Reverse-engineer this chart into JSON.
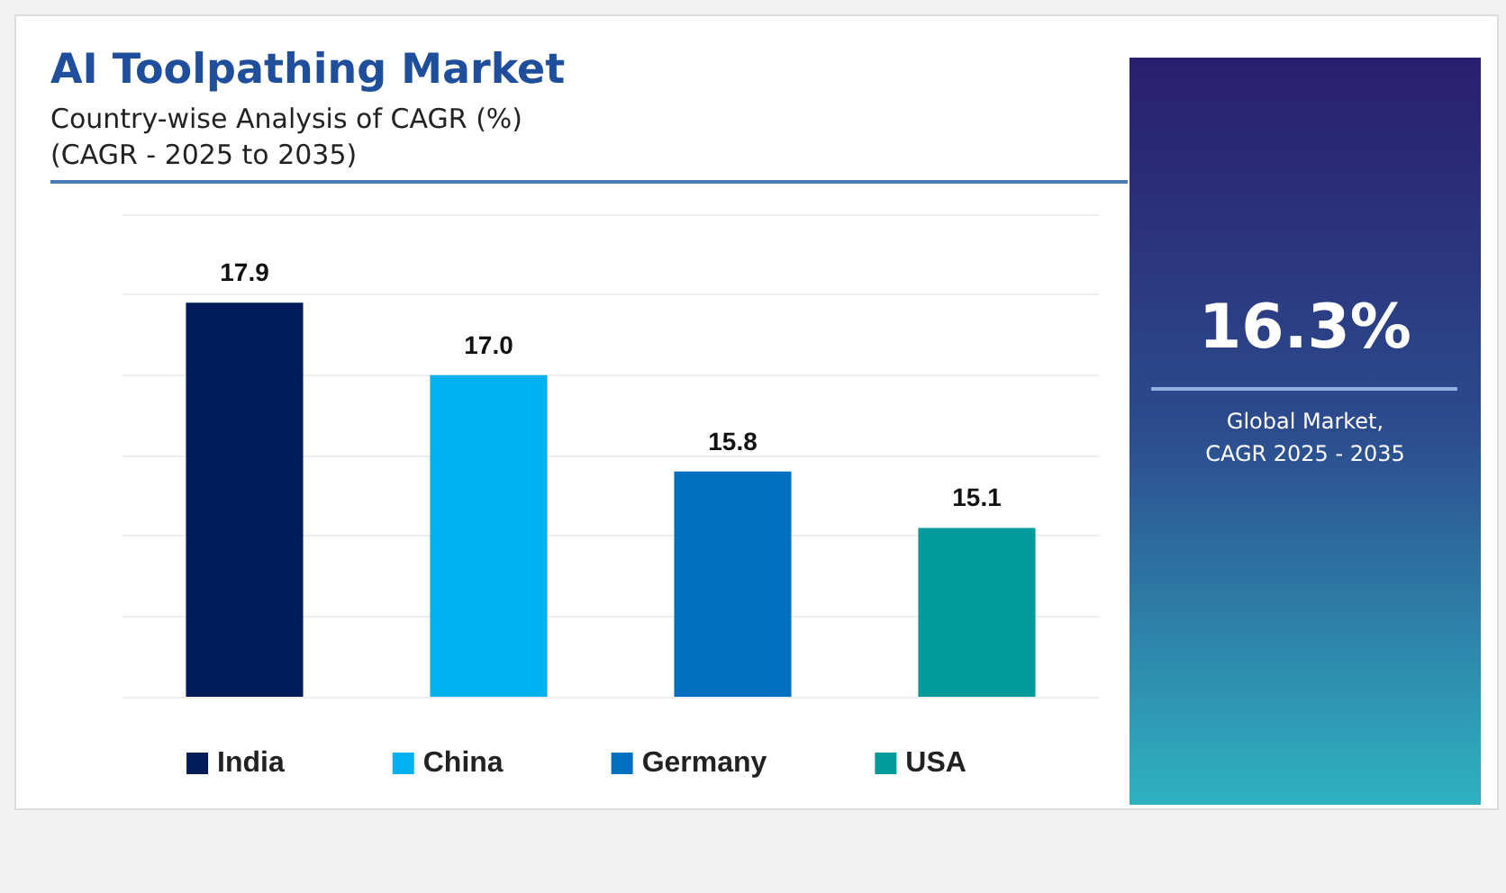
{
  "chart_data": {
    "type": "bar",
    "title": "AI Toolpathing Market",
    "subtitle": "Country-wise Analysis of CAGR (%)\n(CAGR - 2025 to 2035)",
    "categories": [
      null,
      null,
      null,
      null
    ],
    "series": [
      {
        "name": "India",
        "color": "#021c5a",
        "values": [
          17.9,
          null,
          null,
          null
        ],
        "value_labels": [
          "17.9",
          null,
          null,
          null
        ]
      },
      {
        "name": "China",
        "color": "#00b0ef",
        "values": [
          null,
          17.0,
          null,
          null
        ],
        "value_labels": [
          null,
          "17.0",
          null,
          null
        ]
      },
      {
        "name": "Germany",
        "color": "#006fc0",
        "values": [
          null,
          null,
          15.8,
          null
        ],
        "value_labels": [
          null,
          null,
          "15.8",
          null
        ]
      },
      {
        "name": "USA",
        "color": "#009a9b",
        "values": [
          null,
          null,
          null,
          15.1
        ],
        "value_labels": [
          null,
          null,
          null,
          "15.1"
        ]
      }
    ],
    "stacked": true,
    "ylim": [
      13,
      19
    ],
    "yticks": [
      {
        "value": 13,
        "label": null
      },
      {
        "value": 14,
        "label": null
      },
      {
        "value": 15,
        "label": null
      },
      {
        "value": 16,
        "label": null
      },
      {
        "value": 17,
        "label": null
      },
      {
        "value": 18,
        "label": null
      },
      {
        "value": 19,
        "label": null
      }
    ],
    "grid": "y",
    "legend": "bottom",
    "annotations": [
      "16.3%",
      "Global Market,\nCAGR 2025 - 2035"
    ]
  }
}
